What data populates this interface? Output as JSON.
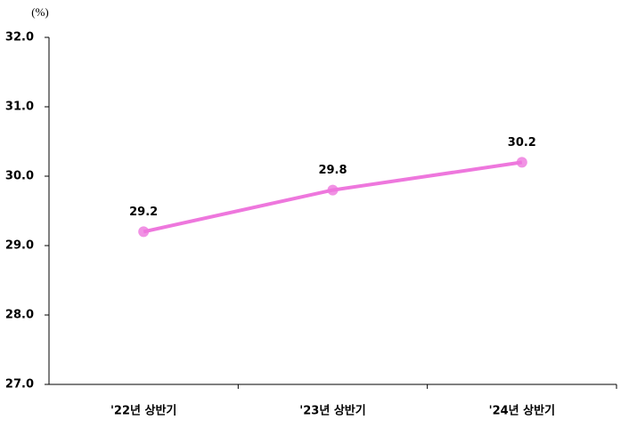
{
  "chart_data": {
    "type": "line",
    "y_label": "(%)",
    "categories": [
      "'22년 상반기",
      "'23년 상반기",
      "'24년 상반기"
    ],
    "values": [
      29.2,
      29.8,
      30.2
    ],
    "color": "#ee77dd",
    "ylim": [
      27,
      32
    ],
    "yticks": [
      {
        "value": 27,
        "label": "27.0"
      },
      {
        "value": 28,
        "label": "28.0"
      },
      {
        "value": 29,
        "label": "29.0"
      },
      {
        "value": 30,
        "label": "30.0"
      },
      {
        "value": 31,
        "label": "31.0"
      },
      {
        "value": 32,
        "label": "32.0"
      }
    ],
    "grid": false
  }
}
